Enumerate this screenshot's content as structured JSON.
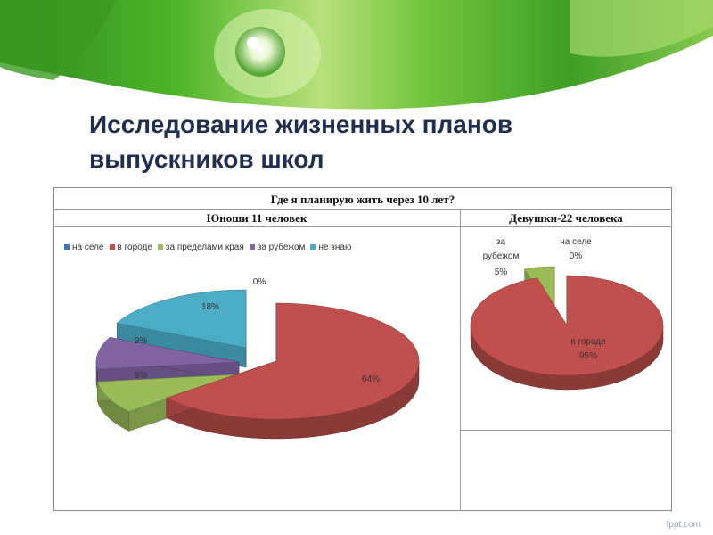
{
  "slide": {
    "title_line1": "Исследование жизненных планов",
    "title_line2": "выпускников школ",
    "footer": "fppt.com"
  },
  "table": {
    "header": "Где я планирую жить через 10 лет?",
    "left_header": "Юноши 11 человек",
    "right_header": "Девушки-22 человека"
  },
  "colors": {
    "na_sele": "#3d78b5",
    "v_gorode": "#c0504d",
    "za_predelami": "#9bbb59",
    "za_rubezhom": "#8064a2",
    "ne_znayu": "#4bacc6",
    "girls_na_sele": "#9bbb59",
    "girls_za_rubezhom": "#8064a2"
  },
  "chart_data": [
    {
      "type": "pie",
      "title": "Юноши 11 человек",
      "legend_position": "top",
      "categories": [
        "на селе",
        "в городе",
        "за пределами края",
        "за рубежом",
        "не знаю"
      ],
      "values": [
        0,
        64,
        9,
        9,
        18
      ],
      "data_labels": [
        "0%",
        "64%",
        "9%",
        "9%",
        "18%"
      ]
    },
    {
      "type": "pie",
      "title": "Девушки-22 человека",
      "categories": [
        "на селе",
        "в городе",
        "за рубежом"
      ],
      "values": [
        0,
        95,
        5
      ],
      "data_labels": [
        {
          "name": "на селе",
          "value": "0%"
        },
        {
          "name": "в городе",
          "value": "95%"
        },
        {
          "name_line1": "за",
          "name_line2": "рубежом",
          "value": "5%"
        }
      ]
    }
  ]
}
